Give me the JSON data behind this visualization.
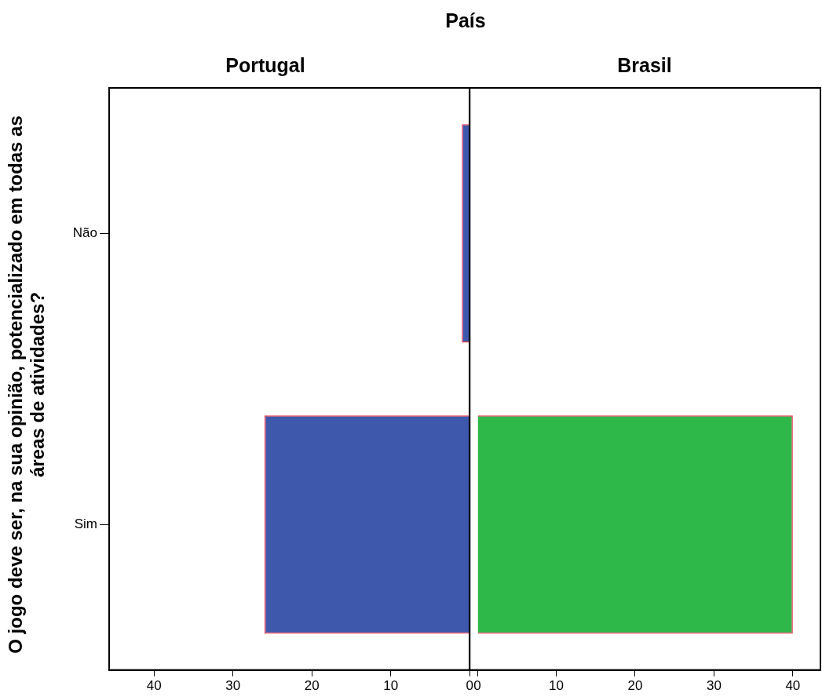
{
  "chart_data": [
    {
      "type": "bar",
      "orientation": "horizontal",
      "title": "Portugal",
      "ylabel": "O jogo deve ser, na sua opinião, potencializado em todas as áreas de atividades?",
      "annotations": [
        "País"
      ],
      "categories": [
        "Não",
        "Sim"
      ],
      "values": [
        1,
        26
      ],
      "color": "#3e59ab",
      "xlim": [
        45.7,
        0
      ],
      "xticks": [
        40,
        30,
        20,
        10,
        0
      ]
    },
    {
      "type": "bar",
      "orientation": "horizontal",
      "title": "Brasil",
      "categories": [
        null,
        null
      ],
      "values": [
        null,
        40
      ],
      "color": "#2fb84a",
      "xlim": [
        -1.1,
        43.5
      ],
      "xticks": [
        0,
        10,
        20,
        30,
        40
      ],
      "tick_labels": "x"
    }
  ]
}
